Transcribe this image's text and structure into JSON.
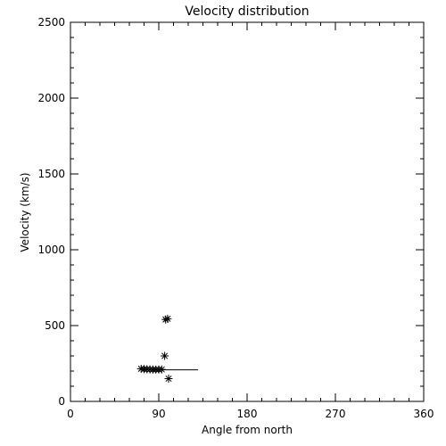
{
  "chart_data": {
    "type": "scatter",
    "title": "Velocity distribution",
    "xlabel": "Angle from north",
    "ylabel": "Velocity (km/s)",
    "xlim": [
      0,
      360
    ],
    "ylim": [
      0,
      2500
    ],
    "x_ticks": [
      0,
      90,
      180,
      270,
      360
    ],
    "y_ticks": [
      0,
      500,
      1000,
      1500,
      2000,
      2500
    ],
    "grid": false,
    "marker": "asterisk",
    "points": [
      {
        "x": 72,
        "y": 215
      },
      {
        "x": 75,
        "y": 213
      },
      {
        "x": 78,
        "y": 212
      },
      {
        "x": 81,
        "y": 211
      },
      {
        "x": 84,
        "y": 210
      },
      {
        "x": 87,
        "y": 210
      },
      {
        "x": 90,
        "y": 210
      },
      {
        "x": 93,
        "y": 211
      },
      {
        "x": 96,
        "y": 300
      },
      {
        "x": 97,
        "y": 540
      },
      {
        "x": 99,
        "y": 545
      },
      {
        "x": 100,
        "y": 150
      }
    ],
    "segments": [
      {
        "x0": 93,
        "x1": 130,
        "y": 208
      }
    ]
  }
}
